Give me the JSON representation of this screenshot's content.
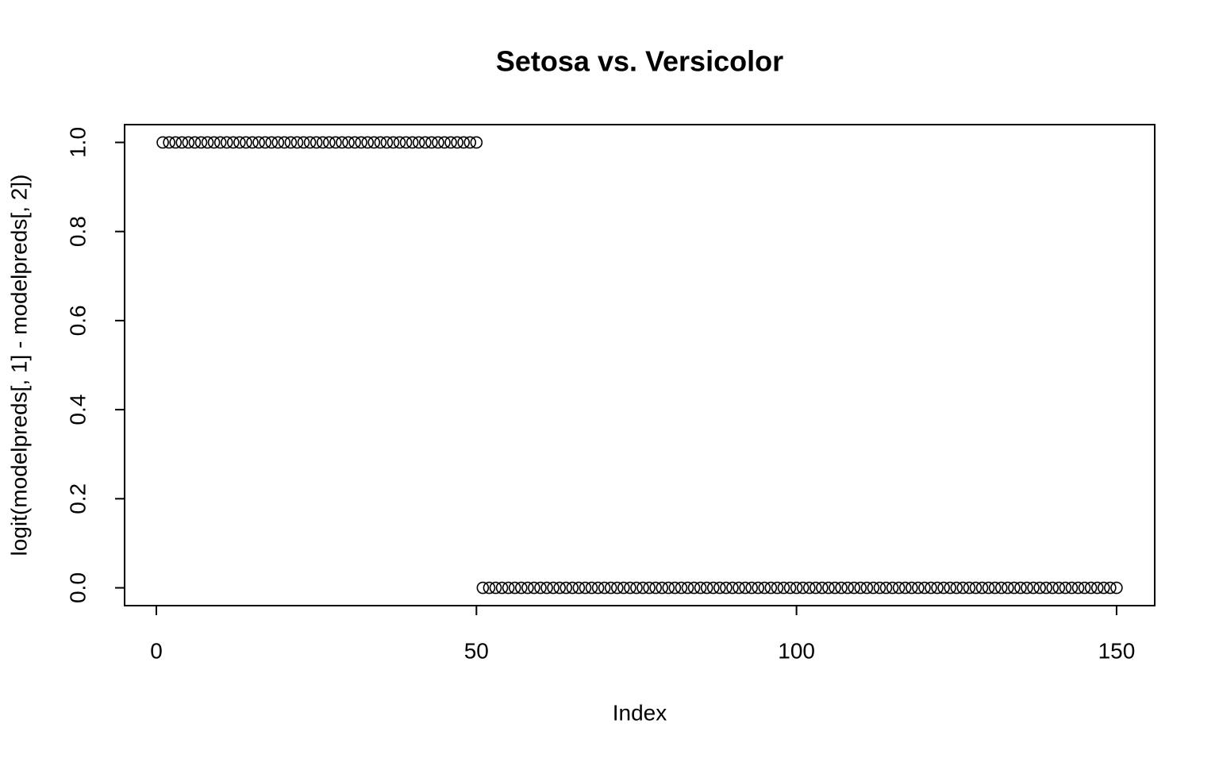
{
  "chart_data": {
    "type": "scatter",
    "title": "Setosa vs. Versicolor",
    "xlabel": "Index",
    "ylabel": "logit(modelpreds[, 1] - modelpreds[, 2])",
    "x": [
      1,
      2,
      3,
      4,
      5,
      6,
      7,
      8,
      9,
      10,
      11,
      12,
      13,
      14,
      15,
      16,
      17,
      18,
      19,
      20,
      21,
      22,
      23,
      24,
      25,
      26,
      27,
      28,
      29,
      30,
      31,
      32,
      33,
      34,
      35,
      36,
      37,
      38,
      39,
      40,
      41,
      42,
      43,
      44,
      45,
      46,
      47,
      48,
      49,
      50,
      51,
      52,
      53,
      54,
      55,
      56,
      57,
      58,
      59,
      60,
      61,
      62,
      63,
      64,
      65,
      66,
      67,
      68,
      69,
      70,
      71,
      72,
      73,
      74,
      75,
      76,
      77,
      78,
      79,
      80,
      81,
      82,
      83,
      84,
      85,
      86,
      87,
      88,
      89,
      90,
      91,
      92,
      93,
      94,
      95,
      96,
      97,
      98,
      99,
      100,
      101,
      102,
      103,
      104,
      105,
      106,
      107,
      108,
      109,
      110,
      111,
      112,
      113,
      114,
      115,
      116,
      117,
      118,
      119,
      120,
      121,
      122,
      123,
      124,
      125,
      126,
      127,
      128,
      129,
      130,
      131,
      132,
      133,
      134,
      135,
      136,
      137,
      138,
      139,
      140,
      141,
      142,
      143,
      144,
      145,
      146,
      147,
      148,
      149,
      150
    ],
    "values": [
      1,
      1,
      1,
      1,
      1,
      1,
      1,
      1,
      1,
      1,
      1,
      1,
      1,
      1,
      1,
      1,
      1,
      1,
      1,
      1,
      1,
      1,
      1,
      1,
      1,
      1,
      1,
      1,
      1,
      1,
      1,
      1,
      1,
      1,
      1,
      1,
      1,
      1,
      1,
      1,
      1,
      1,
      1,
      1,
      1,
      1,
      1,
      1,
      1,
      1,
      0,
      0,
      0,
      0,
      0,
      0,
      0,
      0,
      0,
      0,
      0,
      0,
      0,
      0,
      0,
      0,
      0,
      0,
      0,
      0,
      0,
      0,
      0,
      0,
      0,
      0,
      0,
      0,
      0,
      0,
      0,
      0,
      0,
      0,
      0,
      0,
      0,
      0,
      0,
      0,
      0,
      0,
      0,
      0,
      0,
      0,
      0,
      0,
      0,
      0,
      0,
      0,
      0,
      0,
      0,
      0,
      0,
      0,
      0,
      0,
      0,
      0,
      0,
      0,
      0,
      0,
      0,
      0,
      0,
      0,
      0,
      0,
      0,
      0,
      0,
      0,
      0,
      0,
      0,
      0,
      0,
      0,
      0,
      0,
      0,
      0,
      0,
      0,
      0,
      0,
      0,
      0,
      0,
      0,
      0,
      0,
      0,
      0,
      0,
      0
    ],
    "color": "#000000",
    "xlim": [
      -4.96,
      155.96
    ],
    "xticks": [
      0,
      50,
      100,
      150
    ],
    "ylim": [
      -0.04,
      1.04
    ],
    "yticks": [
      {
        "value": 0,
        "label": "0.0"
      },
      0.2,
      0.4,
      0.6,
      0.8,
      {
        "value": 1,
        "label": "1.0"
      }
    ],
    "grid": false
  }
}
